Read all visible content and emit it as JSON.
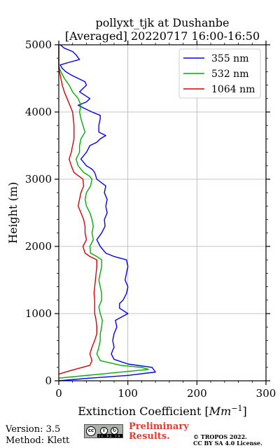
{
  "chart_data": {
    "type": "line",
    "title_line1": "pollyxt_tjk at Dushanbe",
    "title_line2": "[Averaged] 20220717 16:00-16:50",
    "xlabel": "Extinction Coefficient [",
    "xlabel_unit": "Mm",
    "xlabel_exp": "−1",
    "xlabel_end": "]",
    "ylabel": "Height (m)",
    "xlim": [
      0,
      300
    ],
    "ylim": [
      0,
      5000
    ],
    "xticks": [
      0,
      100,
      200,
      300
    ],
    "yticks": [
      0,
      1000,
      2000,
      3000,
      4000,
      5000
    ],
    "xtick_labels": [
      "0",
      "100",
      "200",
      "300"
    ],
    "ytick_labels": [
      "0",
      "1000",
      "2000",
      "3000",
      "4000",
      "5000"
    ],
    "grid": true,
    "legend_position": "top-right",
    "series": [
      {
        "name": "355 nm",
        "color": "#0000ff",
        "points": [
          [
            0,
            0
          ],
          [
            45,
            40
          ],
          [
            100,
            80
          ],
          [
            140,
            130
          ],
          [
            135,
            200
          ],
          [
            100,
            250
          ],
          [
            80,
            320
          ],
          [
            76,
            400
          ],
          [
            80,
            500
          ],
          [
            78,
            600
          ],
          [
            80,
            700
          ],
          [
            84,
            800
          ],
          [
            82,
            900
          ],
          [
            100,
            1000
          ],
          [
            88,
            1080
          ],
          [
            88,
            1150
          ],
          [
            93,
            1200
          ],
          [
            98,
            1300
          ],
          [
            100,
            1400
          ],
          [
            96,
            1500
          ],
          [
            98,
            1600
          ],
          [
            100,
            1700
          ],
          [
            98,
            1800
          ],
          [
            80,
            1850
          ],
          [
            68,
            1900
          ],
          [
            60,
            2000
          ],
          [
            55,
            2100
          ],
          [
            62,
            2200
          ],
          [
            67,
            2300
          ],
          [
            66,
            2400
          ],
          [
            70,
            2500
          ],
          [
            68,
            2600
          ],
          [
            70,
            2700
          ],
          [
            66,
            2800
          ],
          [
            68,
            2900
          ],
          [
            55,
            3000
          ],
          [
            52,
            3100
          ],
          [
            48,
            3150
          ],
          [
            40,
            3200
          ],
          [
            32,
            3300
          ],
          [
            40,
            3400
          ],
          [
            45,
            3500
          ],
          [
            55,
            3550
          ],
          [
            60,
            3600
          ],
          [
            68,
            3650
          ],
          [
            58,
            3700
          ],
          [
            58,
            3800
          ],
          [
            60,
            3900
          ],
          [
            60,
            3950
          ],
          [
            48,
            4000
          ],
          [
            38,
            4050
          ],
          [
            28,
            4100
          ],
          [
            40,
            4150
          ],
          [
            45,
            4200
          ],
          [
            30,
            4300
          ],
          [
            40,
            4400
          ],
          [
            38,
            4450
          ],
          [
            28,
            4500
          ],
          [
            18,
            4550
          ],
          [
            10,
            4600
          ],
          [
            5,
            4650
          ],
          [
            2,
            4700
          ],
          [
            15,
            4740
          ],
          [
            30,
            4780
          ],
          [
            25,
            4850
          ],
          [
            20,
            4900
          ],
          [
            8,
            4950
          ],
          [
            2,
            5000
          ]
        ]
      },
      {
        "name": "532 nm",
        "color": "#00b000",
        "points": [
          [
            0,
            40
          ],
          [
            60,
            100
          ],
          [
            130,
            170
          ],
          [
            120,
            200
          ],
          [
            90,
            230
          ],
          [
            60,
            300
          ],
          [
            55,
            400
          ],
          [
            58,
            500
          ],
          [
            60,
            600
          ],
          [
            60,
            700
          ],
          [
            62,
            800
          ],
          [
            63,
            900
          ],
          [
            60,
            1000
          ],
          [
            58,
            1100
          ],
          [
            62,
            1200
          ],
          [
            62,
            1300
          ],
          [
            60,
            1400
          ],
          [
            58,
            1500
          ],
          [
            60,
            1600
          ],
          [
            62,
            1700
          ],
          [
            62,
            1800
          ],
          [
            55,
            1850
          ],
          [
            46,
            1900
          ],
          [
            45,
            2000
          ],
          [
            50,
            2100
          ],
          [
            48,
            2200
          ],
          [
            50,
            2300
          ],
          [
            48,
            2400
          ],
          [
            45,
            2500
          ],
          [
            40,
            2600
          ],
          [
            38,
            2700
          ],
          [
            40,
            2800
          ],
          [
            46,
            2900
          ],
          [
            48,
            3000
          ],
          [
            44,
            3050
          ],
          [
            36,
            3100
          ],
          [
            32,
            3150
          ],
          [
            28,
            3200
          ],
          [
            25,
            3300
          ],
          [
            30,
            3400
          ],
          [
            30,
            3500
          ],
          [
            32,
            3600
          ],
          [
            38,
            3700
          ],
          [
            35,
            3800
          ],
          [
            32,
            3900
          ],
          [
            30,
            4000
          ],
          [
            32,
            4100
          ],
          [
            28,
            4200
          ],
          [
            20,
            4300
          ],
          [
            15,
            4400
          ],
          [
            8,
            4500
          ],
          [
            3,
            4600
          ],
          [
            1,
            4650
          ],
          [
            0,
            4700
          ],
          [
            0,
            5000
          ]
        ]
      },
      {
        "name": "1064 nm",
        "color": "#dd0000",
        "points": [
          [
            0,
            100
          ],
          [
            20,
            160
          ],
          [
            45,
            230
          ],
          [
            48,
            300
          ],
          [
            45,
            400
          ],
          [
            48,
            500
          ],
          [
            52,
            600
          ],
          [
            55,
            700
          ],
          [
            55,
            800
          ],
          [
            54,
            900
          ],
          [
            52,
            1000
          ],
          [
            52,
            1100
          ],
          [
            52,
            1200
          ],
          [
            51,
            1300
          ],
          [
            52,
            1400
          ],
          [
            53,
            1500
          ],
          [
            54,
            1600
          ],
          [
            55,
            1700
          ],
          [
            55,
            1800
          ],
          [
            45,
            1850
          ],
          [
            38,
            1900
          ],
          [
            35,
            2000
          ],
          [
            40,
            2100
          ],
          [
            38,
            2200
          ],
          [
            38,
            2300
          ],
          [
            36,
            2400
          ],
          [
            32,
            2500
          ],
          [
            28,
            2600
          ],
          [
            30,
            2700
          ],
          [
            32,
            2800
          ],
          [
            36,
            2900
          ],
          [
            35,
            3000
          ],
          [
            22,
            3100
          ],
          [
            18,
            3200
          ],
          [
            15,
            3300
          ],
          [
            18,
            3400
          ],
          [
            20,
            3500
          ],
          [
            22,
            3600
          ],
          [
            22,
            3700
          ],
          [
            22,
            3800
          ],
          [
            21,
            3900
          ],
          [
            20,
            4000
          ],
          [
            16,
            4100
          ],
          [
            12,
            4200
          ],
          [
            8,
            4300
          ],
          [
            5,
            4400
          ],
          [
            3,
            4500
          ],
          [
            1,
            4600
          ],
          [
            0,
            4650
          ],
          [
            0,
            5000
          ]
        ]
      }
    ]
  },
  "footer": {
    "version": "Version: 3.5",
    "method": "Method: Klett",
    "prelim_line1": "Preliminary",
    "prelim_line2": "Results.",
    "copyright_line1": "© TROPOS 2022.",
    "copyright_line2": "CC BY SA 4.0 License.",
    "license_badge": "cc by sa"
  }
}
